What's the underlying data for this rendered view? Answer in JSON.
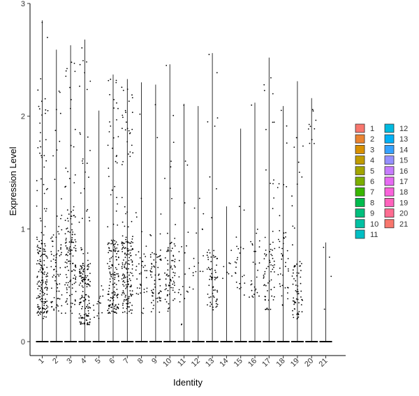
{
  "chart_data": {
    "type": "violin",
    "xlabel": "Identity",
    "ylabel": "Expression Level",
    "ylim": [
      0,
      3
    ],
    "yticks": [
      0,
      1,
      2,
      3
    ],
    "categories": [
      "1",
      "2",
      "3",
      "4",
      "5",
      "6",
      "7",
      "8",
      "9",
      "10",
      "11",
      "12",
      "13",
      "14",
      "15",
      "16",
      "17",
      "18",
      "19",
      "20",
      "21"
    ],
    "max_values": [
      2.85,
      2.59,
      2.63,
      2.68,
      2.05,
      2.37,
      2.33,
      2.3,
      2.28,
      2.46,
      2.11,
      2.09,
      2.56,
      1.2,
      1.89,
      2.12,
      2.52,
      2.09,
      2.31,
      2.16,
      0.88
    ],
    "nonzero_ranges": [
      [
        0.25,
        2.85
      ],
      [
        0.25,
        2.59
      ],
      [
        0.25,
        2.63
      ],
      [
        0.15,
        2.68
      ],
      [
        0.15,
        2.05
      ],
      [
        0.25,
        2.37
      ],
      [
        0.25,
        2.33
      ],
      [
        0.25,
        2.3
      ],
      [
        0.25,
        2.28
      ],
      [
        0.25,
        2.46
      ],
      [
        0.15,
        2.11
      ],
      [
        0.4,
        2.09
      ],
      [
        0.28,
        2.56
      ],
      [
        0.5,
        1.2
      ],
      [
        0.35,
        1.89
      ],
      [
        0.35,
        2.12
      ],
      [
        0.28,
        2.52
      ],
      [
        0.3,
        2.09
      ],
      [
        0.18,
        2.31
      ],
      [
        1.75,
        2.16
      ],
      [
        0.25,
        0.88
      ]
    ],
    "point_density": [
      95,
      40,
      70,
      85,
      8,
      85,
      90,
      20,
      35,
      40,
      12,
      8,
      35,
      4,
      12,
      14,
      35,
      22,
      35,
      5,
      2
    ],
    "dense_bands": [
      [
        0.2,
        0.9
      ],
      [
        0.3,
        1.0
      ],
      [
        0.3,
        1.2
      ],
      [
        0.15,
        0.7
      ],
      [
        0.15,
        0.5
      ],
      [
        0.25,
        0.9
      ],
      [
        0.25,
        0.9
      ],
      [
        0.4,
        0.8
      ],
      [
        0.3,
        0.8
      ],
      [
        0.35,
        0.9
      ],
      [
        0.3,
        0.8
      ],
      [
        0.5,
        1.0
      ],
      [
        0.3,
        0.8
      ],
      [
        0.5,
        1.0
      ],
      [
        0.4,
        0.9
      ],
      [
        0.4,
        0.9
      ],
      [
        0.35,
        1.0
      ],
      [
        0.35,
        1.0
      ],
      [
        0.2,
        0.7
      ],
      [
        1.8,
        2.1
      ],
      [
        0.25,
        0.9
      ]
    ],
    "legend": {
      "placement": "right",
      "entries": [
        "1",
        "2",
        "3",
        "4",
        "5",
        "6",
        "7",
        "8",
        "9",
        "10",
        "11",
        "12",
        "13",
        "14",
        "15",
        "16",
        "17",
        "18",
        "19",
        "20",
        "21"
      ],
      "colors": [
        "#F8766D",
        "#EA8331",
        "#D89000",
        "#C09B00",
        "#A3A500",
        "#7CAE00",
        "#39B600",
        "#00BB4E",
        "#00BF7D",
        "#00C1A3",
        "#00BFC4",
        "#00BAE0",
        "#00B0F6",
        "#35A2FF",
        "#9590FF",
        "#C77CFF",
        "#E76BF3",
        "#FA62DB",
        "#FF62BC",
        "#FF6C91",
        "#F8766D"
      ]
    },
    "grid": false
  }
}
